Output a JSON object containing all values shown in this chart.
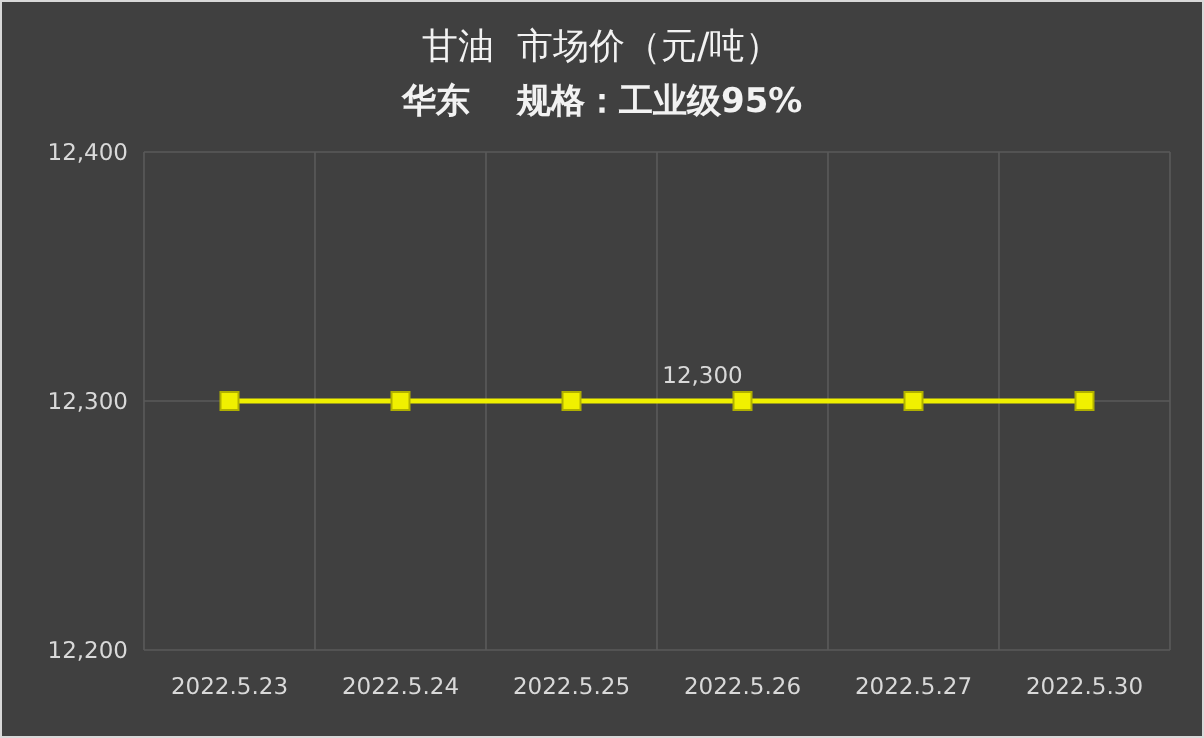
{
  "chart_data": {
    "type": "line",
    "title": "甘油  市场价（元/吨）",
    "subtitle": "华东    规格：工业级95%",
    "categories": [
      "2022.5.23",
      "2022.5.24",
      "2022.5.25",
      "2022.5.26",
      "2022.5.27",
      "2022.5.30"
    ],
    "series": [
      {
        "color": "#f0f000",
        "values": [
          12300,
          12300,
          12300,
          12300,
          12300,
          12300
        ],
        "value_labels": [
          null,
          null,
          null,
          "12,300",
          null,
          null
        ]
      }
    ],
    "ylim": [
      12200,
      12400
    ],
    "yticks": [
      {
        "value": 12200,
        "label": "12,200"
      },
      {
        "value": 12300,
        "label": "12,300"
      },
      {
        "value": 12400,
        "label": "12,400"
      }
    ],
    "grid": true,
    "marker": "square",
    "line_style": "solid"
  }
}
